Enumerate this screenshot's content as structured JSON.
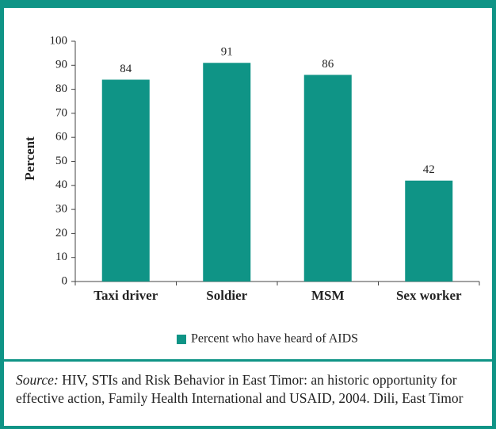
{
  "chart_data": {
    "type": "bar",
    "categories": [
      "Taxi driver",
      "Soldier",
      "MSM",
      "Sex worker"
    ],
    "series": [
      {
        "name": "Percent who have heard of AIDS",
        "color": "#0f9486",
        "values": [
          84,
          91,
          86,
          42
        ]
      }
    ],
    "ylabel": "Percent",
    "ylim": [
      0,
      100
    ],
    "yticks": [
      0,
      10,
      20,
      30,
      40,
      50,
      60,
      70,
      80,
      90,
      100
    ],
    "legend": "bottom"
  },
  "source": {
    "label": "Source:",
    "text": "HIV, STIs and Risk Behavior in East Timor: an historic opportunity for effective action, Family Health International and USAID, 2004. Dili, East Timor"
  }
}
